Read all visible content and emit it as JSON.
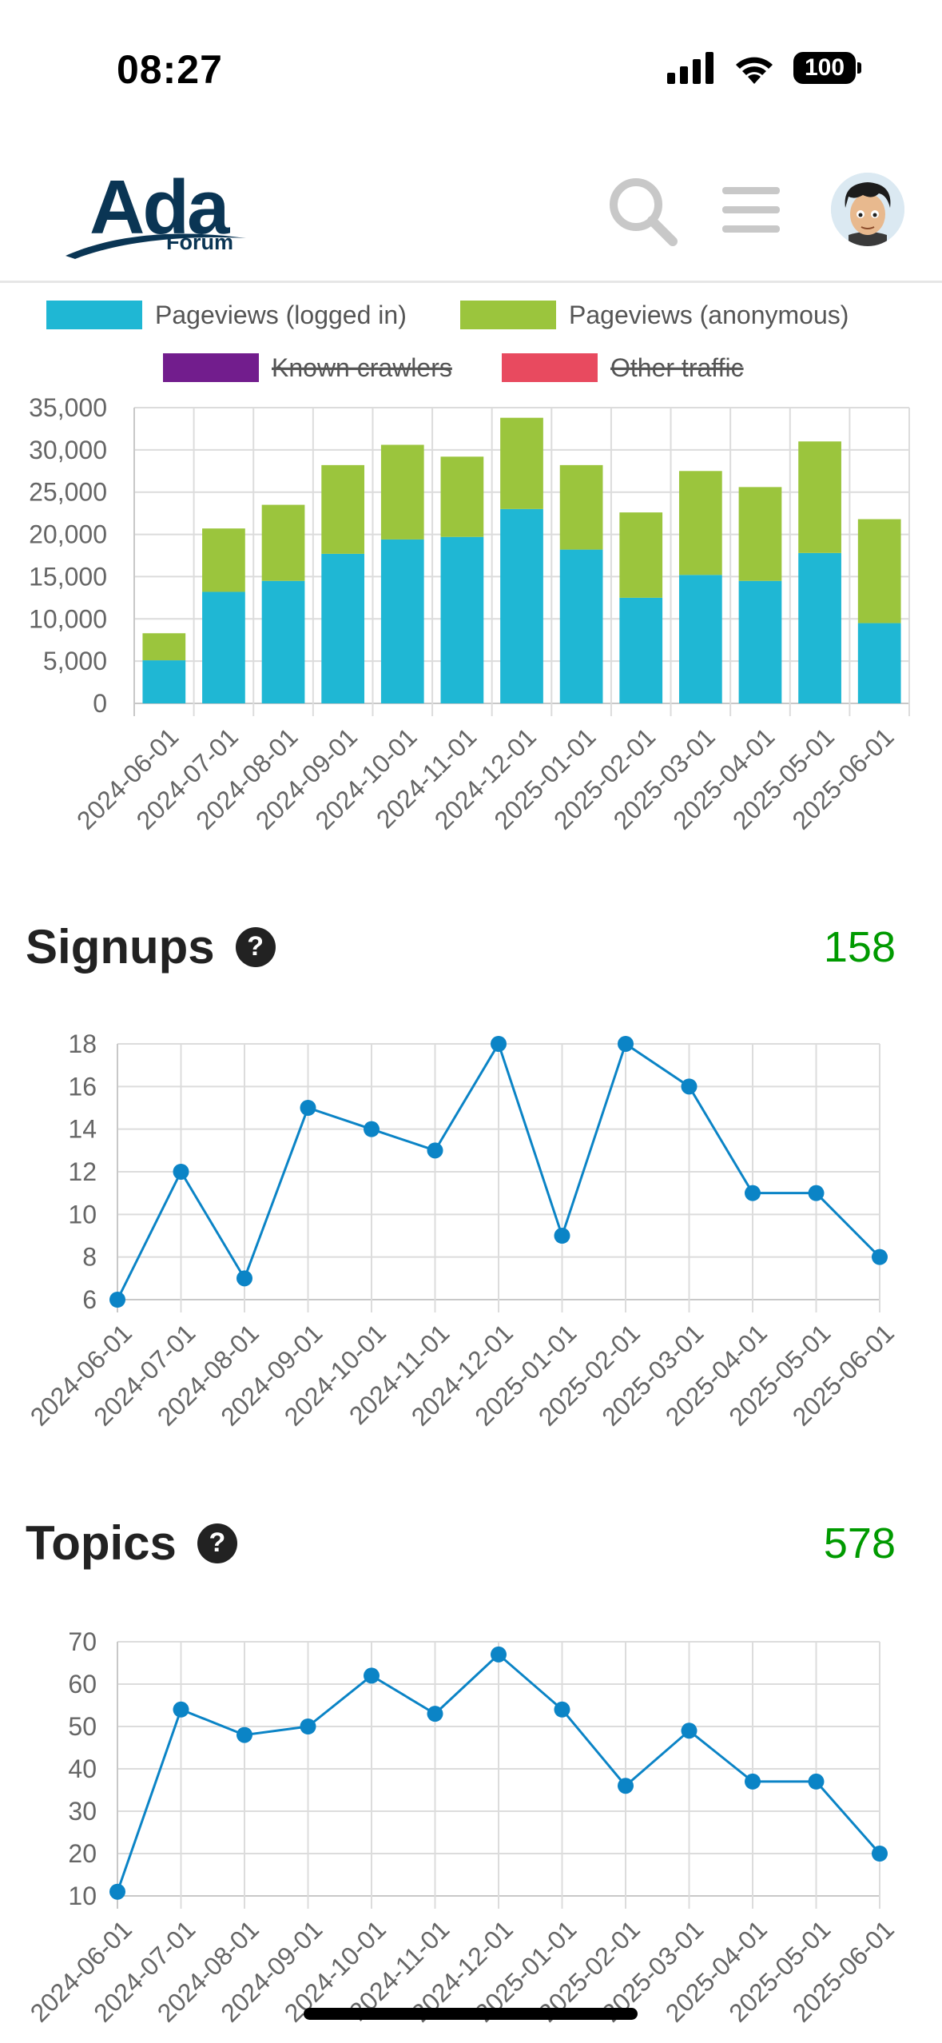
{
  "status_bar": {
    "time": "08:27",
    "battery": "100"
  },
  "header": {
    "logo_title": "Ada",
    "logo_subtitle": "Forum"
  },
  "pageviews": {
    "legend": [
      {
        "label": "Pageviews (logged in)",
        "color": "#1fb7d4",
        "hidden": false
      },
      {
        "label": "Pageviews (anonymous)",
        "color": "#9bc53d",
        "hidden": false
      },
      {
        "label": "Known crawlers",
        "color": "#721d8d",
        "hidden": true
      },
      {
        "label": "Other traffic",
        "color": "#e84a5f",
        "hidden": true
      }
    ]
  },
  "signups": {
    "title": "Signups",
    "total": "158"
  },
  "topics": {
    "title": "Topics",
    "total": "578"
  },
  "chart_data": [
    {
      "type": "bar",
      "stacked": true,
      "categories": [
        "2024-06-01",
        "2024-07-01",
        "2024-08-01",
        "2024-09-01",
        "2024-10-01",
        "2024-11-01",
        "2024-12-01",
        "2025-01-01",
        "2025-02-01",
        "2025-03-01",
        "2025-04-01",
        "2025-05-01",
        "2025-06-01"
      ],
      "series": [
        {
          "name": "Pageviews (logged in)",
          "color": "#1fb7d4",
          "values": [
            5100,
            13200,
            14500,
            17700,
            19400,
            19700,
            23000,
            18200,
            12500,
            15200,
            14500,
            17800,
            9500
          ]
        },
        {
          "name": "Pageviews (anonymous)",
          "color": "#9bc53d",
          "values": [
            3200,
            7500,
            9000,
            10500,
            11200,
            9500,
            10800,
            10000,
            10100,
            12300,
            11100,
            13200,
            12300
          ]
        }
      ],
      "ylim": [
        0,
        35000
      ],
      "yticks": [
        "35,000",
        "30,000",
        "25,000",
        "20,000",
        "15,000",
        "10,000",
        "5,000",
        "0"
      ],
      "grid": true,
      "legend_position": "top"
    },
    {
      "type": "line",
      "categories": [
        "2024-06-01",
        "2024-07-01",
        "2024-08-01",
        "2024-09-01",
        "2024-10-01",
        "2024-11-01",
        "2024-12-01",
        "2025-01-01",
        "2025-02-01",
        "2025-03-01",
        "2025-04-01",
        "2025-05-01",
        "2025-06-01"
      ],
      "values": [
        6,
        12,
        7,
        15,
        14,
        13,
        18,
        9,
        18,
        16,
        11,
        11,
        8
      ],
      "color": "#0b84c6",
      "ylim": [
        6,
        18
      ],
      "yticks": [
        "18",
        "16",
        "14",
        "12",
        "10",
        "8",
        "6"
      ],
      "grid": true
    },
    {
      "type": "line",
      "categories": [
        "2024-06-01",
        "2024-07-01",
        "2024-08-01",
        "2024-09-01",
        "2024-10-01",
        "2024-11-01",
        "2024-12-01",
        "2025-01-01",
        "2025-02-01",
        "2025-03-01",
        "2025-04-01",
        "2025-05-01",
        "2025-06-01"
      ],
      "values": [
        11,
        54,
        48,
        50,
        62,
        53,
        67,
        54,
        36,
        49,
        37,
        37,
        20
      ],
      "color": "#0b84c6",
      "ylim": [
        10,
        70
      ],
      "yticks": [
        "70",
        "60",
        "50",
        "40",
        "30",
        "20",
        "10"
      ],
      "grid": true
    }
  ]
}
